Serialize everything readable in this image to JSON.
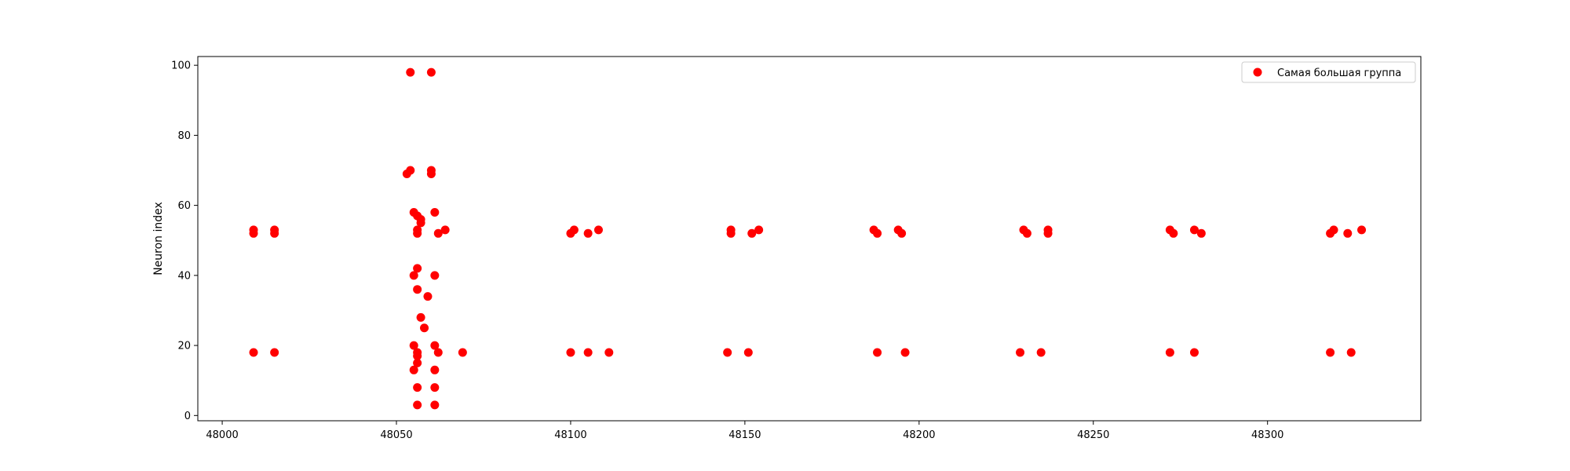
{
  "chart_data": {
    "type": "scatter",
    "title": "",
    "xlabel": "",
    "ylabel": "Neuron index",
    "xlim": [
      47993,
      48344
    ],
    "ylim": [
      -1.5,
      102.5
    ],
    "xticks": [
      48000,
      48050,
      48100,
      48150,
      48200,
      48250,
      48300
    ],
    "yticks": [
      0,
      20,
      40,
      60,
      80,
      100
    ],
    "grid": false,
    "legend_position": "top-right",
    "series": [
      {
        "name": "Самая большая группа",
        "color": "#ff0000",
        "points": [
          {
            "x": 48009,
            "y": 53
          },
          {
            "x": 48009,
            "y": 52
          },
          {
            "x": 48015,
            "y": 53
          },
          {
            "x": 48015,
            "y": 52
          },
          {
            "x": 48009,
            "y": 18
          },
          {
            "x": 48015,
            "y": 18
          },
          {
            "x": 48054,
            "y": 98
          },
          {
            "x": 48060,
            "y": 98
          },
          {
            "x": 48053,
            "y": 69
          },
          {
            "x": 48054,
            "y": 70
          },
          {
            "x": 48060,
            "y": 69
          },
          {
            "x": 48060,
            "y": 70
          },
          {
            "x": 48055,
            "y": 58
          },
          {
            "x": 48056,
            "y": 57
          },
          {
            "x": 48057,
            "y": 56
          },
          {
            "x": 48057,
            "y": 55
          },
          {
            "x": 48056,
            "y": 53
          },
          {
            "x": 48056,
            "y": 52
          },
          {
            "x": 48061,
            "y": 58
          },
          {
            "x": 48062,
            "y": 52
          },
          {
            "x": 48064,
            "y": 53
          },
          {
            "x": 48056,
            "y": 42
          },
          {
            "x": 48055,
            "y": 40
          },
          {
            "x": 48061,
            "y": 40
          },
          {
            "x": 48056,
            "y": 36
          },
          {
            "x": 48059,
            "y": 34
          },
          {
            "x": 48057,
            "y": 28
          },
          {
            "x": 48058,
            "y": 25
          },
          {
            "x": 48055,
            "y": 20
          },
          {
            "x": 48061,
            "y": 20
          },
          {
            "x": 48056,
            "y": 18
          },
          {
            "x": 48056,
            "y": 17
          },
          {
            "x": 48062,
            "y": 18
          },
          {
            "x": 48069,
            "y": 18
          },
          {
            "x": 48056,
            "y": 15
          },
          {
            "x": 48055,
            "y": 13
          },
          {
            "x": 48061,
            "y": 13
          },
          {
            "x": 48056,
            "y": 8
          },
          {
            "x": 48061,
            "y": 8
          },
          {
            "x": 48056,
            "y": 3
          },
          {
            "x": 48061,
            "y": 3
          },
          {
            "x": 48100,
            "y": 52
          },
          {
            "x": 48101,
            "y": 53
          },
          {
            "x": 48105,
            "y": 52
          },
          {
            "x": 48108,
            "y": 53
          },
          {
            "x": 48100,
            "y": 18
          },
          {
            "x": 48105,
            "y": 18
          },
          {
            "x": 48111,
            "y": 18
          },
          {
            "x": 48146,
            "y": 53
          },
          {
            "x": 48146,
            "y": 52
          },
          {
            "x": 48152,
            "y": 52
          },
          {
            "x": 48154,
            "y": 53
          },
          {
            "x": 48145,
            "y": 18
          },
          {
            "x": 48151,
            "y": 18
          },
          {
            "x": 48187,
            "y": 53
          },
          {
            "x": 48188,
            "y": 52
          },
          {
            "x": 48194,
            "y": 53
          },
          {
            "x": 48195,
            "y": 52
          },
          {
            "x": 48188,
            "y": 18
          },
          {
            "x": 48196,
            "y": 18
          },
          {
            "x": 48230,
            "y": 53
          },
          {
            "x": 48231,
            "y": 52
          },
          {
            "x": 48237,
            "y": 53
          },
          {
            "x": 48237,
            "y": 52
          },
          {
            "x": 48229,
            "y": 18
          },
          {
            "x": 48235,
            "y": 18
          },
          {
            "x": 48272,
            "y": 53
          },
          {
            "x": 48273,
            "y": 52
          },
          {
            "x": 48279,
            "y": 53
          },
          {
            "x": 48281,
            "y": 52
          },
          {
            "x": 48272,
            "y": 18
          },
          {
            "x": 48279,
            "y": 18
          },
          {
            "x": 48318,
            "y": 52
          },
          {
            "x": 48319,
            "y": 53
          },
          {
            "x": 48323,
            "y": 52
          },
          {
            "x": 48327,
            "y": 53
          },
          {
            "x": 48318,
            "y": 18
          },
          {
            "x": 48324,
            "y": 18
          }
        ]
      }
    ]
  }
}
